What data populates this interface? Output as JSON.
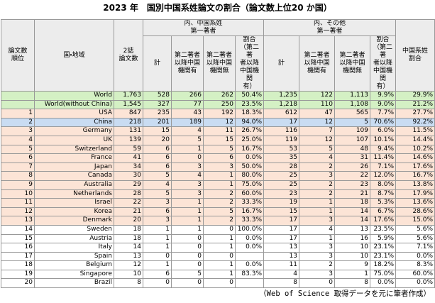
{
  "title": "2023 年　国別中国系姓論文の割合（論文数上位20 か国）",
  "table": {
    "header": {
      "rank": "論文数\n順位",
      "country": "国・地域",
      "total": "2誌\n論文数",
      "group1": "内、中国系姓\n第一著者",
      "group2": "内、その他\n第一著者",
      "share": "中国系姓\n割合",
      "sub1": [
        "計",
        "第二著者\n以降中国\n機関有",
        "第二著者\n以降中国\n機関無",
        "割合\n（第二著\n者以降\n中国機関\n有）"
      ],
      "sub2": [
        "計",
        "第二著者\n以降中国\n機関有",
        "第二著者\n以降中国\n機関無",
        "割合\n（第二著\n者以降\n中国機関\n有）"
      ]
    },
    "rows": [
      [
        null,
        "World",
        "1,763",
        "528",
        "266",
        "262",
        "50.4%",
        "1,235",
        "122",
        "1,113",
        "9.9%",
        "29.9%"
      ],
      [
        null,
        "World(without China)",
        "1,545",
        "327",
        "77",
        "250",
        "23.5%",
        "1,218",
        "110",
        "1,108",
        "9.0%",
        "21.2%"
      ],
      [
        "1",
        "USA",
        "847",
        "235",
        "43",
        "192",
        "18.3%",
        "612",
        "47",
        "565",
        "7.7%",
        "27.7%"
      ],
      [
        "2",
        "China",
        "218",
        "201",
        "189",
        "12",
        "94.0%",
        "17",
        "12",
        "5",
        "70.6%",
        "92.2%"
      ],
      [
        "3",
        "Germany",
        "131",
        "15",
        "4",
        "11",
        "26.7%",
        "116",
        "7",
        "109",
        "6.0%",
        "11.5%"
      ],
      [
        "4",
        "UK",
        "139",
        "20",
        "5",
        "15",
        "25.0%",
        "119",
        "12",
        "107",
        "10.1%",
        "14.4%"
      ],
      [
        "5",
        "Switzerland",
        "59",
        "6",
        "1",
        "5",
        "16.7%",
        "53",
        "5",
        "48",
        "9.4%",
        "10.2%"
      ],
      [
        "6",
        "France",
        "41",
        "6",
        "0",
        "6",
        "0.0%",
        "35",
        "4",
        "31",
        "11.4%",
        "14.6%"
      ],
      [
        "7",
        "Japan",
        "34",
        "6",
        "3",
        "3",
        "50.0%",
        "28",
        "2",
        "26",
        "7.1%",
        "17.6%"
      ],
      [
        "8",
        "Canada",
        "30",
        "5",
        "4",
        "1",
        "80.0%",
        "25",
        "3",
        "22",
        "12.0%",
        "16.7%"
      ],
      [
        "9",
        "Australia",
        "29",
        "4",
        "3",
        "1",
        "75.0%",
        "25",
        "2",
        "23",
        "8.0%",
        "13.8%"
      ],
      [
        "10",
        "Netherlands",
        "28",
        "5",
        "3",
        "2",
        "60.0%",
        "23",
        "2",
        "21",
        "8.7%",
        "17.9%"
      ],
      [
        "11",
        "Israel",
        "22",
        "3",
        "1",
        "2",
        "33.3%",
        "19",
        "1",
        "18",
        "5.3%",
        "13.6%"
      ],
      [
        "12",
        "Korea",
        "21",
        "6",
        "1",
        "5",
        "16.7%",
        "15",
        "1",
        "14",
        "6.7%",
        "28.6%"
      ],
      [
        "13",
        "Denmark",
        "20",
        "3",
        "1",
        "2",
        "33.3%",
        "17",
        "3",
        "14",
        "17.6%",
        "15.0%"
      ],
      [
        "14",
        "Sweden",
        "18",
        "1",
        "1",
        "0",
        "100.0%",
        "17",
        "4",
        "13",
        "23.5%",
        "5.6%"
      ],
      [
        "15",
        "Austria",
        "18",
        "1",
        "0",
        "1",
        "0.0%",
        "17",
        "1",
        "16",
        "5.9%",
        "5.6%"
      ],
      [
        "16",
        "Italy",
        "14",
        "1",
        "0",
        "1",
        "0.0%",
        "13",
        "3",
        "10",
        "23.1%",
        "7.1%"
      ],
      [
        "17",
        "Spain",
        "13",
        "0",
        "0",
        "0",
        null,
        "13",
        "3",
        "10",
        "23.1%",
        "0.0%"
      ],
      [
        "18",
        "Belgium",
        "12",
        "1",
        "0",
        "1",
        "0.0%",
        "11",
        "2",
        "9",
        "18.2%",
        "8.3%"
      ],
      [
        "19",
        "Singapore",
        "10",
        "6",
        "5",
        "1",
        "83.3%",
        "4",
        "3",
        "1",
        "75.0%",
        "60.0%"
      ],
      [
        "20",
        "Brazil",
        "8",
        "0",
        "0",
        "0",
        null,
        "8",
        "0",
        "8",
        "0.0%",
        "0.0%"
      ]
    ]
  },
  "footer": "（Web of Science 取得データを元に筆者作成）"
}
